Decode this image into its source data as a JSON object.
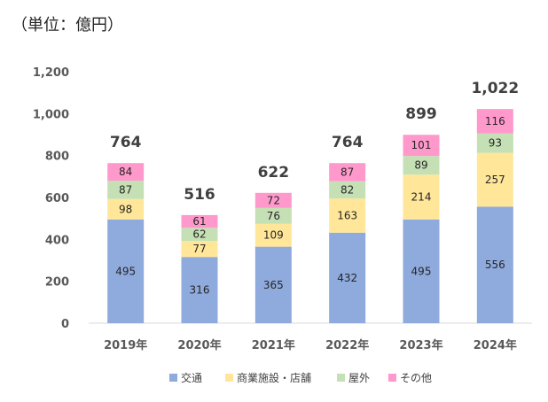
{
  "unit_label": "（単位：億円）",
  "chart_data": {
    "type": "bar",
    "stacked": true,
    "categories": [
      "2019年",
      "2020年",
      "2021年",
      "2022年",
      "2023年",
      "2024年"
    ],
    "series": [
      {
        "name": "交通",
        "values": [
          495,
          316,
          365,
          432,
          495,
          556
        ],
        "color": "#8FAADC"
      },
      {
        "name": "商業施設・店舗",
        "values": [
          98,
          77,
          109,
          163,
          214,
          257
        ],
        "color": "#FFE699"
      },
      {
        "name": "屋外",
        "values": [
          87,
          62,
          76,
          82,
          89,
          93
        ],
        "color": "#C5E0B4"
      },
      {
        "name": "その他",
        "values": [
          84,
          61,
          72,
          87,
          101,
          116
        ],
        "color": "#FF99CC"
      }
    ],
    "totals": [
      "764",
      "516",
      "622",
      "764",
      "899",
      "1,022"
    ],
    "y_ticks": [
      "0",
      "200",
      "400",
      "600",
      "800",
      "1,000",
      "1,200"
    ],
    "ylim": [
      0,
      1200
    ],
    "grid": false,
    "legend_position": "bottom"
  }
}
